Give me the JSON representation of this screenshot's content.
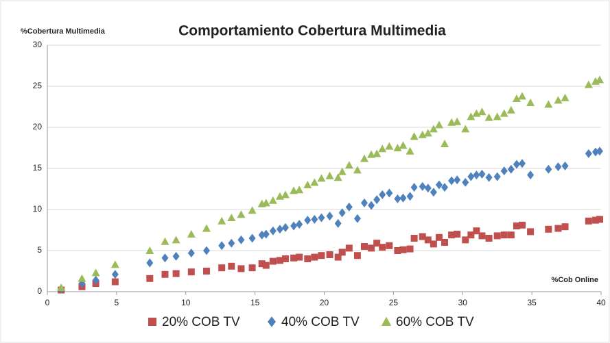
{
  "chart_data": {
    "type": "scatter",
    "title": "Comportamiento Cobertura Multimedia",
    "y_label": "%Cobertura Multimedia",
    "x_label": "%Cob Online",
    "x": [
      1,
      2.5,
      3.5,
      4.9,
      7.4,
      8.5,
      9.3,
      10.4,
      11.5,
      12.6,
      13.3,
      14,
      14.8,
      15.5,
      15.8,
      16.3,
      16.8,
      17.2,
      17.8,
      18.2,
      18.8,
      19.3,
      19.8,
      20.4,
      21,
      21.3,
      21.8,
      22.4,
      22.9,
      23.4,
      23.8,
      24.2,
      24.7,
      25.3,
      25.7,
      26.2,
      26.5,
      27.1,
      27.5,
      27.9,
      28.3,
      28.7,
      29.2,
      29.6,
      30.2,
      30.6,
      31,
      31.4,
      31.9,
      32.5,
      33,
      33.5,
      33.9,
      34.3,
      34.9,
      36.2,
      36.9,
      37.4,
      39.1,
      39.6,
      39.9
    ],
    "series": [
      {
        "name": "20% COB TV",
        "color": "#c0504d",
        "marker": "square",
        "values": [
          0.2,
          0.6,
          1,
          1.2,
          1.6,
          2.1,
          2.2,
          2.4,
          2.5,
          2.9,
          3.1,
          2.8,
          2.9,
          3.4,
          3.2,
          3.7,
          3.8,
          4,
          4.1,
          4.2,
          4,
          4.2,
          4.4,
          4.5,
          4.2,
          4.8,
          5.3,
          4.4,
          5.5,
          5.3,
          5.9,
          5.4,
          5.6,
          5,
          5.1,
          5.2,
          6.5,
          6.7,
          6.3,
          5.8,
          6.6,
          6,
          6.9,
          7,
          6.3,
          6.9,
          7.4,
          6.8,
          6.5,
          6.8,
          6.9,
          6.9,
          8,
          8.1,
          7.3,
          7.6,
          7.7,
          7.9,
          8.6,
          8.7,
          8.8
        ]
      },
      {
        "name": "40% COB TV",
        "color": "#4f81bd",
        "marker": "diamond",
        "values": [
          0.3,
          1,
          1.4,
          2.1,
          3.5,
          4.1,
          4.3,
          4.7,
          5,
          5.6,
          5.9,
          6.3,
          6.5,
          6.9,
          7,
          7.4,
          7.6,
          7.8,
          8,
          8.2,
          8.7,
          8.8,
          9,
          9.2,
          8.3,
          9.6,
          10.3,
          8.9,
          10.8,
          10.5,
          11.2,
          11.8,
          12,
          11.3,
          11.4,
          11.6,
          12.7,
          12.8,
          12.6,
          12.1,
          13,
          12.7,
          13.5,
          13.6,
          13.3,
          14,
          14.2,
          14.3,
          13.9,
          14,
          14.7,
          14.9,
          15.5,
          15.6,
          14.2,
          14.9,
          15.2,
          15.3,
          16.8,
          17,
          17.1
        ]
      },
      {
        "name": "60% COB TV",
        "color": "#9bbb59",
        "marker": "triangle",
        "values": [
          0.5,
          1.6,
          2.3,
          3.3,
          5,
          6.1,
          6.3,
          7,
          7.7,
          8.6,
          9,
          9.4,
          9.9,
          10.7,
          10.8,
          11.1,
          11.6,
          11.8,
          12.3,
          12.4,
          13,
          13.3,
          13.8,
          14.1,
          13.9,
          14.6,
          15.4,
          14.8,
          16.2,
          16.7,
          16.8,
          17.4,
          17.7,
          17.5,
          17.8,
          17.1,
          18.9,
          19.1,
          19.3,
          19.8,
          20.3,
          18,
          20.6,
          20.7,
          19.8,
          21.3,
          21.7,
          21.9,
          21.2,
          21.3,
          21.7,
          22.1,
          23.5,
          23.8,
          23,
          22.8,
          23.3,
          23.6,
          25.2,
          25.6,
          25.8
        ]
      }
    ],
    "xlim": [
      0,
      40
    ],
    "xticks": [
      0,
      5,
      10,
      15,
      20,
      25,
      30,
      35,
      40
    ],
    "ylim": [
      0,
      30
    ],
    "yticks": [
      0,
      5,
      10,
      15,
      20,
      25,
      30
    ],
    "grid": true,
    "legend": "bottom"
  }
}
